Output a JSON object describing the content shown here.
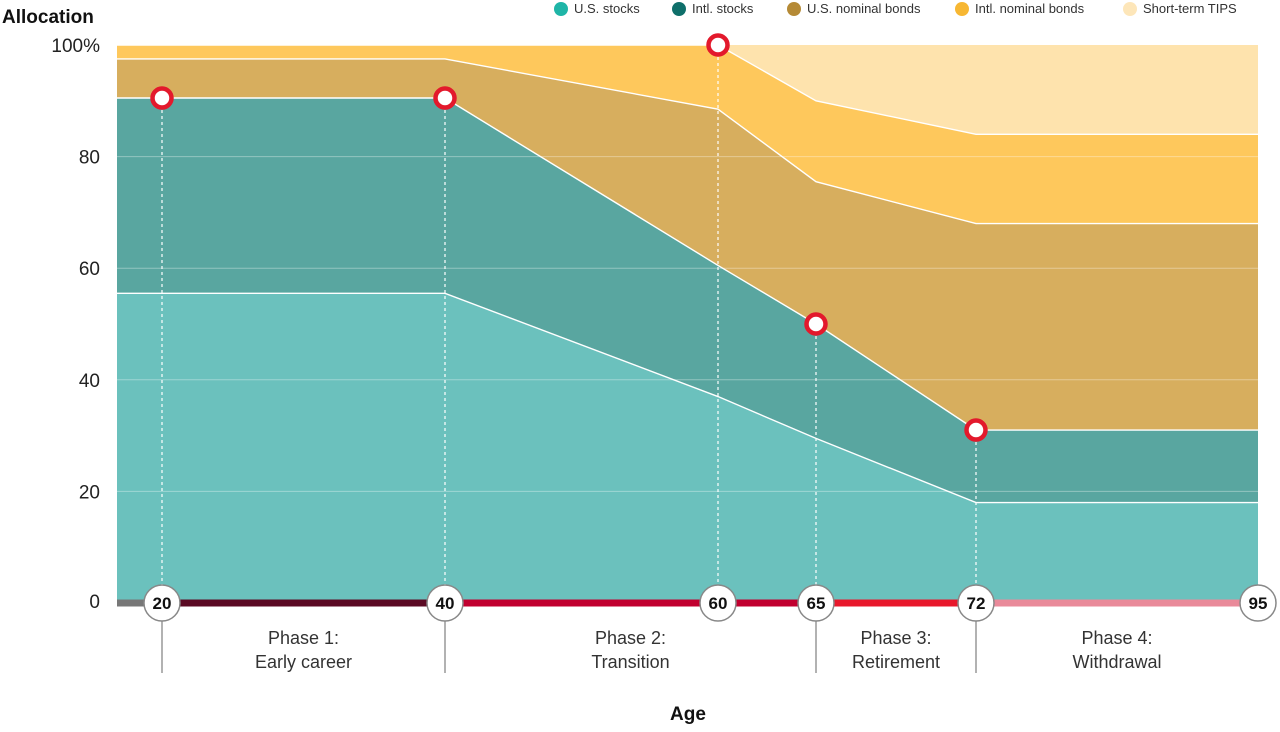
{
  "chart_data": {
    "type": "area",
    "stacked": true,
    "ylabel": "Allocation",
    "xlabel": "Age",
    "y_ticks": [
      "100%",
      "80",
      "60",
      "40",
      "20",
      "0"
    ],
    "y_tick_values": [
      100,
      80,
      60,
      40,
      20,
      0
    ],
    "ylim": [
      0,
      100
    ],
    "x": [
      19,
      20,
      40,
      60,
      65,
      72,
      95
    ],
    "series": [
      {
        "name": "U.S. stocks",
        "color": "#1fb5a7",
        "fill": "#6bc1bd",
        "values": [
          55.5,
          55.5,
          55.5,
          37.0,
          29.5,
          18.0,
          18.0
        ]
      },
      {
        "name": "Intl. stocks",
        "color": "#0f6f6a",
        "fill": "#59a6a0",
        "values": [
          35.0,
          35.0,
          35.0,
          23.5,
          20.5,
          13.0,
          13.0
        ]
      },
      {
        "name": "U.S. nominal bonds",
        "color": "#b58a36",
        "fill": "#d7ae5e",
        "values": [
          7.0,
          7.0,
          7.0,
          28.0,
          25.5,
          37.0,
          37.0
        ]
      },
      {
        "name": "Intl. nominal bonds",
        "color": "#f7b733",
        "fill": "#fec85c",
        "values": [
          2.5,
          2.5,
          2.5,
          11.5,
          14.5,
          16.0,
          16.0
        ]
      },
      {
        "name": "Short-term TIPS",
        "color": "#fde6b9",
        "fill": "#fee3ad",
        "values": [
          0,
          0,
          0,
          0,
          10.0,
          16.0,
          16.0
        ]
      }
    ],
    "markers": [
      {
        "age": 20,
        "value": 90.5
      },
      {
        "age": 40,
        "value": 90.5
      },
      {
        "age": 60,
        "value": 100
      },
      {
        "age": 65,
        "value": 50.0
      },
      {
        "age": 72,
        "value": 31.0
      }
    ],
    "age_labels": [
      "20",
      "40",
      "60",
      "65",
      "72",
      "95"
    ],
    "age_label_values": [
      20,
      40,
      60,
      65,
      72,
      95
    ],
    "timeline_segments": [
      {
        "from": 19,
        "to": 20,
        "color": "#777777"
      },
      {
        "from": 20,
        "to": 40,
        "color": "#5b0a24"
      },
      {
        "from": 40,
        "to": 65,
        "color": "#c1002f"
      },
      {
        "from": 65,
        "to": 72,
        "color": "#e8182c"
      },
      {
        "from": 72,
        "to": 95,
        "color": "#e98a9a"
      }
    ],
    "phase_dividers": [
      20,
      40,
      65,
      72
    ],
    "phases": [
      {
        "line1": "Phase 1:",
        "line2": "Early career",
        "from": 20,
        "to": 40
      },
      {
        "line1": "Phase 2:",
        "line2": "Transition",
        "from": 40,
        "to": 65
      },
      {
        "line1": "Phase 3:",
        "line2": "Retirement",
        "from": 65,
        "to": 72
      },
      {
        "line1": "Phase 4:",
        "line2": "Withdrawal",
        "from": 72,
        "to": 95
      }
    ],
    "legend": "top-right",
    "grid": true
  }
}
